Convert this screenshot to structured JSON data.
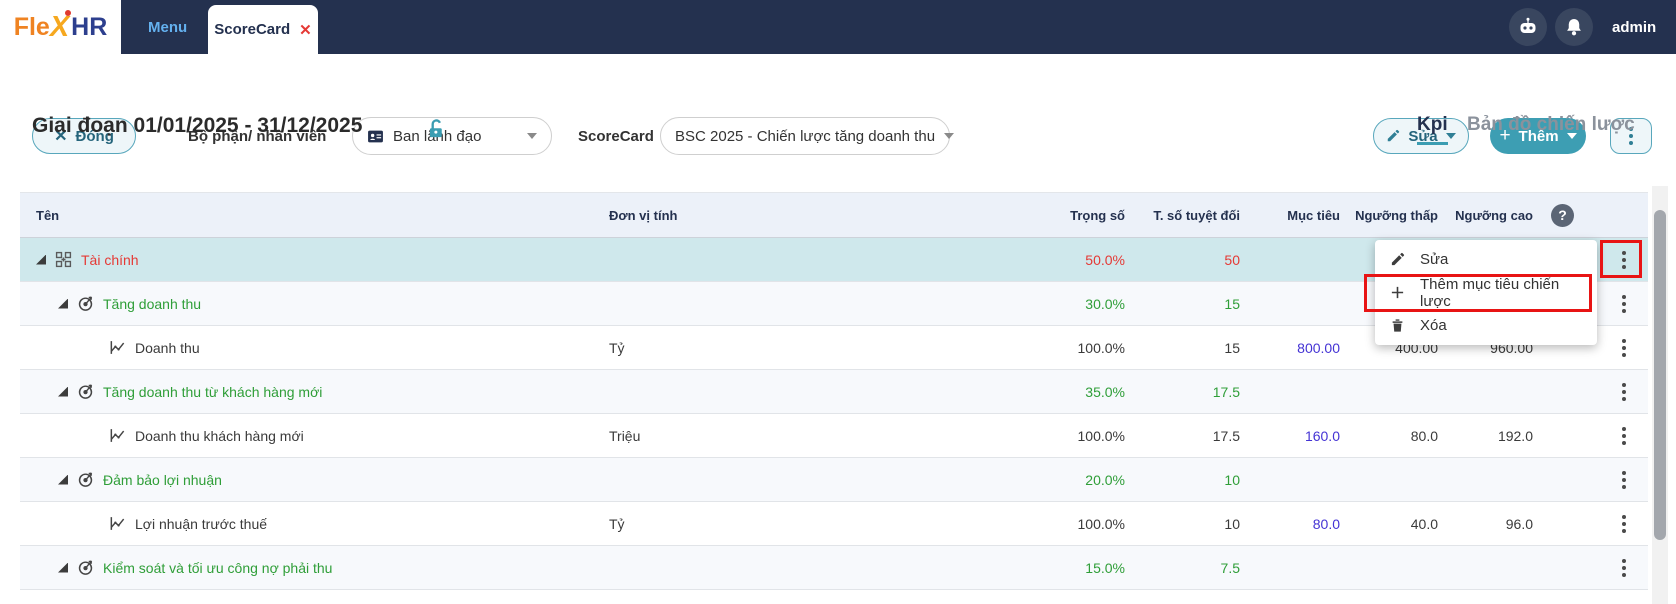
{
  "navbar": {
    "logo": {
      "part1": "Fle",
      "part2": "X",
      "part3": "HR"
    },
    "menu_tab": "Menu",
    "active_tab": "ScoreCard",
    "close_glyph": "✕",
    "username": "admin"
  },
  "toolbar": {
    "close_button": "Đóng",
    "close_glyph": "✕",
    "department_label": "Bộ phận/ nhân viên",
    "department_value": "Ban lãnh đạo",
    "scorecard_label": "ScoreCard",
    "scorecard_value": "BSC 2025 - Chiến lược tăng doanh thu",
    "edit_button": "Sửa",
    "add_button": "Thêm",
    "add_glyph": "+"
  },
  "period": {
    "title": "Giai đoạn 01/01/2025 - 31/12/2025"
  },
  "view_tabs": {
    "kpi": "Kpi",
    "strategy_map": "Bản đồ chiến lược"
  },
  "table": {
    "columns": {
      "name": "Tên",
      "unit": "Đơn vị tính",
      "weight": "Trọng số",
      "absolute": "T. số tuyệt đối",
      "target": "Mục tiêu",
      "low": "Ngưỡng thấp",
      "high": "Ngưỡng cao"
    },
    "rows": [
      {
        "name": "Tài chính",
        "level": 0,
        "type": "perspective",
        "color": "red",
        "selected": true,
        "unit": "",
        "weight": "50.0%",
        "absolute": "50",
        "target": "",
        "low": "",
        "high": ""
      },
      {
        "name": "Tăng doanh thu",
        "level": 1,
        "type": "objective",
        "color": "green",
        "unit": "",
        "weight": "30.0%",
        "absolute": "15",
        "target": "",
        "low": "",
        "high": ""
      },
      {
        "name": "Doanh thu",
        "level": 2,
        "type": "kpi",
        "color": "",
        "unit": "Tỷ",
        "weight": "100.0%",
        "absolute": "15",
        "target": "800.00",
        "low": "400.00",
        "high": "960.00"
      },
      {
        "name": "Tăng doanh thu từ khách hàng mới",
        "level": 1,
        "type": "objective",
        "color": "green",
        "unit": "",
        "weight": "35.0%",
        "absolute": "17.5",
        "target": "",
        "low": "",
        "high": ""
      },
      {
        "name": "Doanh thu khách hàng mới",
        "level": 2,
        "type": "kpi",
        "color": "",
        "unit": "Triệu",
        "weight": "100.0%",
        "absolute": "17.5",
        "target": "160.0",
        "low": "80.0",
        "high": "192.0"
      },
      {
        "name": "Đảm bảo lợi nhuận",
        "level": 1,
        "type": "objective",
        "color": "green",
        "unit": "",
        "weight": "20.0%",
        "absolute": "10",
        "target": "",
        "low": "",
        "high": ""
      },
      {
        "name": "Lợi nhuận trước thuế",
        "level": 2,
        "type": "kpi",
        "color": "",
        "unit": "Tỷ",
        "weight": "100.0%",
        "absolute": "10",
        "target": "80.0",
        "low": "40.0",
        "high": "96.0"
      },
      {
        "name": "Kiểm soát và tối ưu công nợ phải thu",
        "level": 1,
        "type": "objective",
        "color": "green",
        "unit": "",
        "weight": "15.0%",
        "absolute": "7.5",
        "target": "",
        "low": "",
        "high": ""
      }
    ]
  },
  "context_menu": {
    "items": [
      {
        "label": "Sửa",
        "icon": "pencil-icon",
        "highlighted": false
      },
      {
        "label": "Thêm mục tiêu chiến lược",
        "icon": "plus-icon",
        "highlighted": true
      },
      {
        "label": "Xóa",
        "icon": "trash-icon",
        "highlighted": false
      }
    ]
  },
  "colors": {
    "navy": "#24314f",
    "teal": "#3d9eb3",
    "selected_row": "#cfe8ec",
    "red_text": "#e53935",
    "green_text": "#2f9e38",
    "target_blue": "#4433d4",
    "annotation_red": "#e81414"
  }
}
